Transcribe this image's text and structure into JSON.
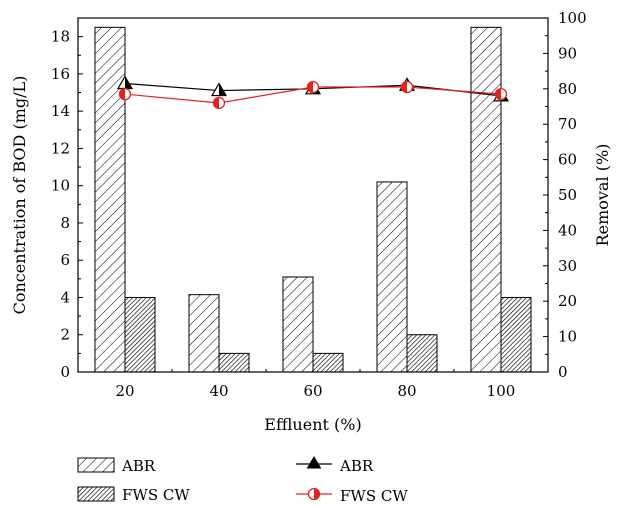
{
  "chart_data": {
    "type": "bar",
    "categories": [
      "20",
      "40",
      "60",
      "80",
      "100"
    ],
    "xlabel": "Effluent (%)",
    "ylabel_left": "Concentration of BOD (mg/L)",
    "ylabel_right": "Removal (%)",
    "ylim_left": [
      0,
      19
    ],
    "ylim_right": [
      0,
      100
    ],
    "yticks_left": [
      "0",
      "2",
      "4",
      "6",
      "8",
      "10",
      "12",
      "14",
      "16",
      "18"
    ],
    "yticks_right": [
      "0",
      "10",
      "20",
      "30",
      "40",
      "50",
      "60",
      "70",
      "80",
      "90",
      "100"
    ],
    "bar_series": [
      {
        "name": "ABR",
        "values": [
          18.5,
          4.15,
          5.1,
          10.2,
          18.5
        ],
        "pattern": "sparse-hatch"
      },
      {
        "name": "FWS CW",
        "values": [
          4.0,
          1.0,
          1.0,
          2.0,
          4.0
        ],
        "pattern": "dense-hatch"
      }
    ],
    "line_series": [
      {
        "name": "ABR",
        "axis": "right",
        "marker": "triangle",
        "values": [
          81.5,
          79.5,
          80.0,
          81.0,
          78.0
        ]
      },
      {
        "name": "FWS CW",
        "axis": "right",
        "marker": "half-filled-circle",
        "color": "#e8201f",
        "values": [
          78.5,
          76.0,
          80.5,
          80.5,
          78.5
        ]
      }
    ],
    "legend": {
      "placement": "bottom"
    },
    "grid": false
  }
}
